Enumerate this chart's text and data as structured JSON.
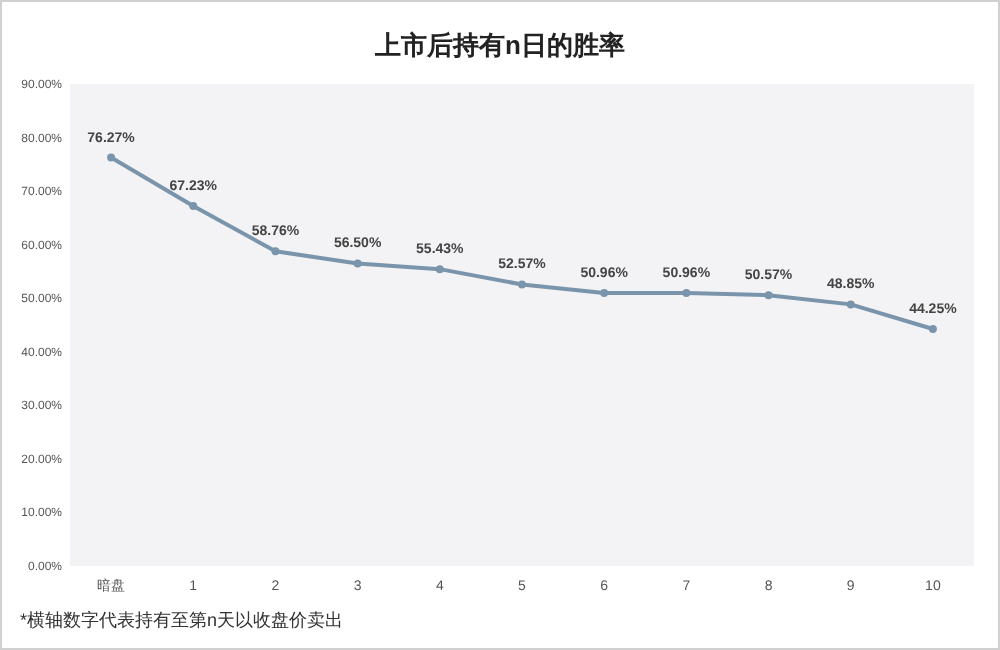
{
  "chart_data": {
    "type": "line",
    "title": "上市后持有n日的胜率",
    "categories": [
      "暗盘",
      "1",
      "2",
      "3",
      "4",
      "5",
      "6",
      "7",
      "8",
      "9",
      "10"
    ],
    "series": [
      {
        "color": "#7a95ab",
        "values": [
          76.27,
          67.23,
          58.76,
          56.5,
          55.43,
          52.57,
          50.96,
          50.96,
          50.57,
          48.85,
          44.25
        ]
      }
    ],
    "value_labels": [
      "76.27%",
      "67.23%",
      "58.76%",
      "56.50%",
      "55.43%",
      "52.57%",
      "50.96%",
      "50.96%",
      "50.57%",
      "48.85%",
      "44.25%"
    ],
    "ylim": [
      0,
      90
    ],
    "yticks": [
      {
        "value": 0,
        "label": "0.00%"
      },
      {
        "value": 10,
        "label": "10.00%"
      },
      {
        "value": 20,
        "label": "20.00%"
      },
      {
        "value": 30,
        "label": "30.00%"
      },
      {
        "value": 40,
        "label": "40.00%"
      },
      {
        "value": 50,
        "label": "50.00%"
      },
      {
        "value": 60,
        "label": "60.00%"
      },
      {
        "value": 70,
        "label": "70.00%"
      },
      {
        "value": 80,
        "label": "80.00%"
      },
      {
        "value": 90,
        "label": "90.00%"
      }
    ],
    "marker": "circle",
    "annotations": [
      "*横轴数字代表持有至第n天以收盘价卖出"
    ]
  }
}
